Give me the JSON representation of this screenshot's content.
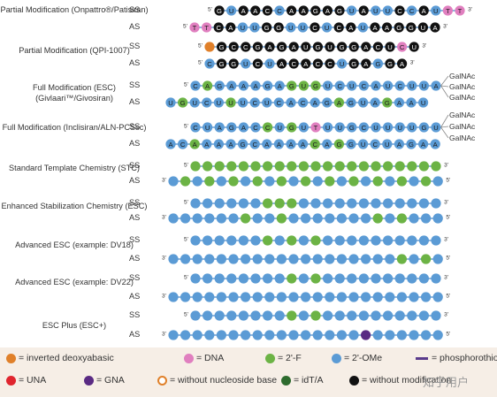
{
  "colors": {
    "dna": "#e07fbf",
    "f2": "#6cb345",
    "ome": "#5b9bd5",
    "ps": "#5a3b8c",
    "una": "#e0252e",
    "gna": "#5a2a83",
    "idt": "#2e6b2e",
    "none": "#111111",
    "inv": "#e0802a",
    "strand_line": "#8fb6dd"
  },
  "groups": [
    {
      "label": "Partial Modification (Onpattro®/Patisiran)",
      "ss": {
        "strand_label": "SS",
        "five_prime": "5'",
        "three_prime": "3'",
        "letters": [
          "G",
          "U",
          "A",
          "A",
          "C",
          "C",
          "A",
          "A",
          "G",
          "A",
          "G",
          "U",
          "A",
          "U",
          "U",
          "C",
          "C",
          "A",
          "U",
          "T",
          "T"
        ],
        "mods": [
          "none",
          "ome",
          "none",
          "none",
          "none",
          "ome",
          "none",
          "none",
          "none",
          "none",
          "none",
          "ome",
          "none",
          "ome",
          "ome",
          "none",
          "ome",
          "none",
          "ome",
          "dna",
          "dna"
        ]
      },
      "as": {
        "strand_label": "AS",
        "five_prime": "5'",
        "three_prime": "3'",
        "letters": [
          "T",
          "T",
          "C",
          "A",
          "U",
          "U",
          "G",
          "G",
          "U",
          "U",
          "C",
          "U",
          "C",
          "A",
          "U",
          "A",
          "A",
          "G",
          "G",
          "U",
          "A"
        ],
        "mods": [
          "dna",
          "dna",
          "none",
          "none",
          "ome",
          "ome",
          "none",
          "none",
          "ome",
          "ome",
          "none",
          "ome",
          "none",
          "none",
          "ome",
          "none",
          "none",
          "none",
          "none",
          "none",
          "none"
        ]
      }
    },
    {
      "label": "Partial Modification (QPI-1007)",
      "ss": {
        "strand_label": "SS",
        "five_prime": "5'",
        "three_prime": "3'",
        "letters": [
          "",
          "G",
          "C",
          "C",
          "G",
          "A",
          "G",
          "A",
          "U",
          "G",
          "U",
          "G",
          "G",
          "A",
          "C",
          "U",
          "C",
          "U"
        ],
        "mods": [
          "inv",
          "none",
          "none",
          "none",
          "none",
          "none",
          "none",
          "none",
          "none",
          "none",
          "none",
          "none",
          "none",
          "none",
          "none",
          "none",
          "dna",
          "none"
        ]
      },
      "as": {
        "strand_label": "AS",
        "five_prime": "5'",
        "three_prime": "3'",
        "letters": [
          "C",
          "G",
          "G",
          "U",
          "C",
          "U",
          "A",
          "C",
          "A",
          "C",
          "C",
          "U",
          "G",
          "A",
          "G",
          "G",
          "A"
        ],
        "mods": [
          "ome",
          "none",
          "none",
          "ome",
          "none",
          "ome",
          "none",
          "none",
          "none",
          "none",
          "none",
          "ome",
          "none",
          "none",
          "ome",
          "none",
          "none"
        ]
      }
    },
    {
      "label": "Full Modification (ESC) (Givlaari™/Givosiran)",
      "ss": {
        "strand_label": "SS",
        "five_prime": "5'",
        "three_prime": "",
        "letters": [
          "C",
          "A",
          "G",
          "A",
          "A",
          "A",
          "G",
          "A",
          "G",
          "U",
          "G",
          "U",
          "C",
          "U",
          "C",
          "A",
          "U",
          "C",
          "U",
          "U",
          "A"
        ],
        "mods": [
          "ome",
          "f2",
          "ome",
          "ome",
          "ome",
          "ome",
          "ome",
          "ome",
          "f2",
          "f2",
          "f2",
          "ome",
          "ome",
          "ome",
          "ome",
          "ome",
          "ome",
          "ome",
          "ome",
          "ome",
          "ome"
        ]
      },
      "as": {
        "strand_label": "AS",
        "five_prime": "",
        "three_prime": "",
        "letters": [
          "U",
          "G",
          "U",
          "C",
          "U",
          "U",
          "U",
          "C",
          "U",
          "C",
          "A",
          "C",
          "A",
          "G",
          "A",
          "G",
          "U",
          "A",
          "G",
          "A",
          "A",
          "U"
        ],
        "mods": [
          "ome",
          "f2",
          "ome",
          "ome",
          "ome",
          "f2",
          "ome",
          "ome",
          "ome",
          "ome",
          "ome",
          "ome",
          "ome",
          "ome",
          "f2",
          "ome",
          "ome",
          "ome",
          "f2",
          "ome",
          "ome",
          "ome"
        ]
      },
      "galnac": [
        "GalNAc",
        "GalNAc",
        "GalNAc"
      ]
    },
    {
      "label": "Full Modification (Inclisiran/ALN-PCSsc)",
      "ss": {
        "strand_label": "SS",
        "five_prime": "5'",
        "three_prime": "",
        "letters": [
          "C",
          "U",
          "A",
          "G",
          "A",
          "C",
          "C",
          "U",
          "G",
          "U",
          "T",
          "U",
          "U",
          "G",
          "C",
          "U",
          "U",
          "U",
          "U",
          "G",
          "U"
        ],
        "mods": [
          "ome",
          "ome",
          "ome",
          "ome",
          "ome",
          "ome",
          "f2",
          "ome",
          "f2",
          "ome",
          "dna",
          "ome",
          "ome",
          "ome",
          "ome",
          "ome",
          "ome",
          "ome",
          "ome",
          "ome",
          "ome"
        ]
      },
      "as": {
        "strand_label": "AS",
        "five_prime": "",
        "three_prime": "",
        "letters": [
          "A",
          "C",
          "A",
          "A",
          "A",
          "A",
          "G",
          "C",
          "A",
          "A",
          "A",
          "A",
          "C",
          "A",
          "G",
          "G",
          "U",
          "C",
          "U",
          "A",
          "G",
          "A",
          "A"
        ],
        "mods": [
          "ome",
          "ome",
          "f2",
          "ome",
          "ome",
          "ome",
          "ome",
          "ome",
          "ome",
          "ome",
          "ome",
          "ome",
          "f2",
          "ome",
          "f2",
          "ome",
          "ome",
          "ome",
          "ome",
          "ome",
          "ome",
          "ome",
          "ome"
        ]
      },
      "galnac": [
        "GalNAc",
        "GalNAc",
        "GalNAc"
      ]
    },
    {
      "label": "Standard Template Chemistry (STC)",
      "ss": {
        "strand_label": "SS",
        "five_prime": "5'",
        "three_prime": "3'",
        "letters": [],
        "mods": [
          "f2",
          "f2",
          "f2",
          "f2",
          "f2",
          "f2",
          "f2",
          "f2",
          "f2",
          "f2",
          "f2",
          "f2",
          "f2",
          "f2",
          "f2",
          "f2",
          "f2",
          "f2",
          "f2",
          "f2",
          "f2"
        ]
      },
      "as": {
        "strand_label": "AS",
        "five_prime": "3'",
        "three_prime": "5'",
        "letters": [],
        "mods": [
          "ome",
          "f2",
          "ome",
          "f2",
          "ome",
          "f2",
          "ome",
          "f2",
          "ome",
          "f2",
          "ome",
          "f2",
          "ome",
          "f2",
          "ome",
          "f2",
          "ome",
          "f2",
          "ome",
          "f2",
          "ome",
          "f2",
          "ome"
        ]
      }
    },
    {
      "label": "Enhanced Stabilization Chemistry (ESC)",
      "ss": {
        "strand_label": "SS",
        "five_prime": "5'",
        "three_prime": "3'",
        "letters": [],
        "mods": [
          "ome",
          "ome",
          "ome",
          "ome",
          "ome",
          "ome",
          "f2",
          "f2",
          "f2",
          "ome",
          "ome",
          "ome",
          "ome",
          "ome",
          "ome",
          "ome",
          "ome",
          "ome",
          "ome",
          "ome",
          "ome"
        ]
      },
      "as": {
        "strand_label": "AS",
        "five_prime": "3'",
        "three_prime": "5'",
        "letters": [],
        "mods": [
          "ome",
          "ome",
          "ome",
          "ome",
          "ome",
          "ome",
          "f2",
          "ome",
          "ome",
          "f2",
          "ome",
          "ome",
          "ome",
          "ome",
          "ome",
          "ome",
          "ome",
          "f2",
          "ome",
          "f2",
          "ome",
          "ome",
          "ome"
        ]
      }
    },
    {
      "label": "Advanced ESC (example: DV18)",
      "ss": {
        "strand_label": "SS",
        "five_prime": "5'",
        "three_prime": "3'",
        "letters": [],
        "mods": [
          "ome",
          "ome",
          "ome",
          "ome",
          "ome",
          "ome",
          "f2",
          "ome",
          "f2",
          "ome",
          "f2",
          "ome",
          "ome",
          "ome",
          "ome",
          "ome",
          "ome",
          "ome",
          "ome",
          "ome",
          "ome"
        ]
      },
      "as": {
        "strand_label": "AS",
        "five_prime": "3'",
        "three_prime": "5'",
        "letters": [],
        "mods": [
          "ome",
          "ome",
          "ome",
          "ome",
          "ome",
          "ome",
          "ome",
          "ome",
          "ome",
          "ome",
          "ome",
          "ome",
          "ome",
          "ome",
          "ome",
          "ome",
          "ome",
          "ome",
          "ome",
          "f2",
          "ome",
          "f2",
          "ome"
        ]
      }
    },
    {
      "label": "Advanced ESC (example: DV22)",
      "ss": {
        "strand_label": "SS",
        "five_prime": "5'",
        "three_prime": "3'",
        "letters": [],
        "mods": [
          "ome",
          "ome",
          "ome",
          "ome",
          "ome",
          "ome",
          "ome",
          "ome",
          "f2",
          "ome",
          "f2",
          "ome",
          "ome",
          "ome",
          "ome",
          "ome",
          "ome",
          "ome",
          "ome",
          "ome",
          "ome"
        ]
      },
      "as": {
        "strand_label": "AS",
        "five_prime": "3'",
        "three_prime": "5'",
        "letters": [],
        "mods": [
          "ome",
          "ome",
          "ome",
          "ome",
          "ome",
          "ome",
          "ome",
          "ome",
          "ome",
          "ome",
          "ome",
          "ome",
          "ome",
          "ome",
          "ome",
          "ome",
          "ome",
          "ome",
          "ome",
          "ome",
          "ome",
          "ome",
          "ome"
        ]
      }
    },
    {
      "label": "ESC Plus (ESC+)",
      "ss": {
        "strand_label": "SS",
        "five_prime": "5'",
        "three_prime": "3'",
        "letters": [],
        "mods": [
          "ome",
          "ome",
          "ome",
          "ome",
          "ome",
          "ome",
          "ome",
          "ome",
          "f2",
          "ome",
          "f2",
          "ome",
          "ome",
          "ome",
          "ome",
          "ome",
          "ome",
          "ome",
          "ome",
          "ome",
          "ome"
        ]
      },
      "as": {
        "strand_label": "AS",
        "five_prime": "3'",
        "three_prime": "5'",
        "letters": [],
        "mods": [
          "ome",
          "ome",
          "ome",
          "ome",
          "ome",
          "ome",
          "ome",
          "ome",
          "ome",
          "ome",
          "ome",
          "ome",
          "ome",
          "ome",
          "ome",
          "ome",
          "gna",
          "ome",
          "ome",
          "ome",
          "ome",
          "ome",
          "ome"
        ]
      }
    }
  ],
  "legend": [
    {
      "key": "inv",
      "label": "= inverted deoxyabasic",
      "kind": "inv"
    },
    {
      "key": "dna",
      "label": "= DNA",
      "kind": "dot"
    },
    {
      "key": "f2",
      "label": "= 2'-F",
      "kind": "dot"
    },
    {
      "key": "ome",
      "label": "= 2'-OMe",
      "kind": "dot"
    },
    {
      "key": "ps",
      "label": "= phosphorothioate",
      "kind": "line"
    },
    {
      "key": "una",
      "label": "= UNA",
      "kind": "dot"
    },
    {
      "key": "gna",
      "label": "= GNA",
      "kind": "dot"
    },
    {
      "key": "nobase",
      "label": "= without nucleoside base",
      "kind": "ring"
    },
    {
      "key": "idt",
      "label": "= idT/A",
      "kind": "dot"
    },
    {
      "key": "none",
      "label": "= without modification",
      "kind": "dot"
    }
  ],
  "watermark": "知乎用户"
}
